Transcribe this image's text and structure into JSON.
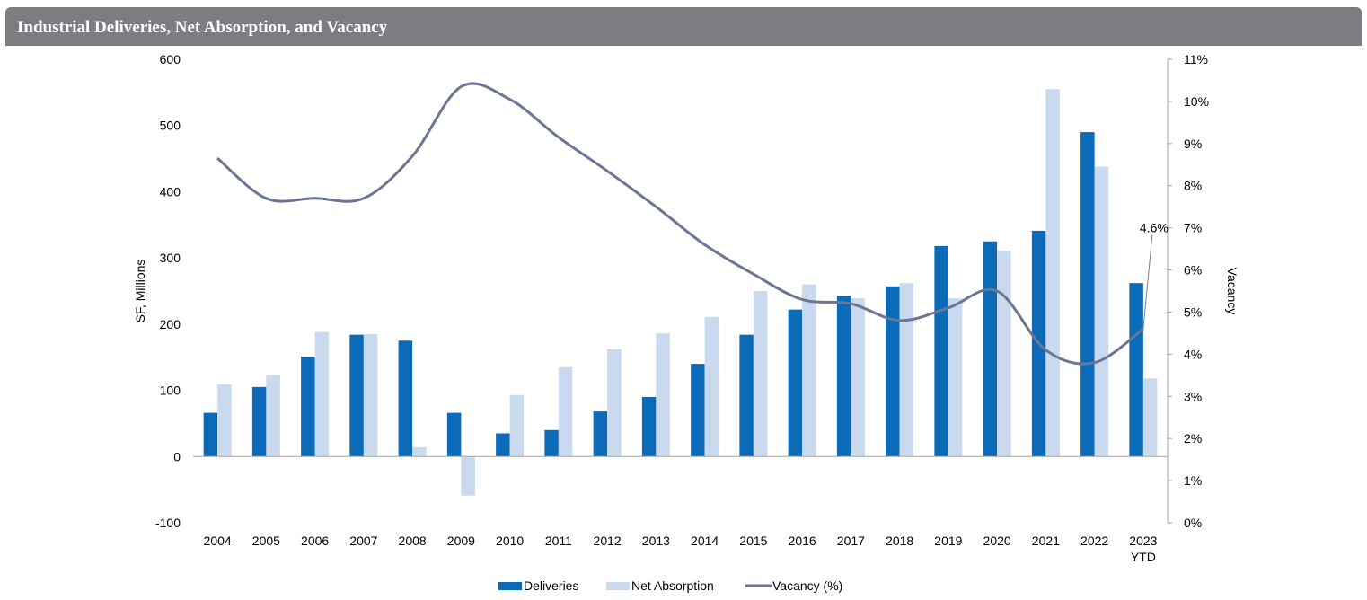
{
  "header": {
    "title": "Industrial Deliveries, Net Absorption, and Vacancy"
  },
  "chart_data": {
    "type": "bar",
    "title": "Industrial Deliveries, Net Absorption, and Vacancy",
    "ylabel": "SF, Millions",
    "y2label": "Vacancy",
    "ylim": [
      -100,
      600
    ],
    "y2lim": [
      0,
      11
    ],
    "yticks": [
      "-100",
      "0",
      "100",
      "200",
      "300",
      "400",
      "500",
      "600"
    ],
    "y2ticks": [
      "0%",
      "1%",
      "2%",
      "3%",
      "4%",
      "5%",
      "6%",
      "7%",
      "8%",
      "9%",
      "10%",
      "11%"
    ],
    "categories": [
      "2004",
      "2005",
      "2006",
      "2007",
      "2008",
      "2009",
      "2010",
      "2011",
      "2012",
      "2013",
      "2014",
      "2015",
      "2016",
      "2017",
      "2018",
      "2019",
      "2020",
      "2021",
      "2022",
      "2023 YTD"
    ],
    "category_lines": [
      [
        "2004"
      ],
      [
        "2005"
      ],
      [
        "2006"
      ],
      [
        "2007"
      ],
      [
        "2008"
      ],
      [
        "2009"
      ],
      [
        "2010"
      ],
      [
        "2011"
      ],
      [
        "2012"
      ],
      [
        "2013"
      ],
      [
        "2014"
      ],
      [
        "2015"
      ],
      [
        "2016"
      ],
      [
        "2017"
      ],
      [
        "2018"
      ],
      [
        "2019"
      ],
      [
        "2020"
      ],
      [
        "2021"
      ],
      [
        "2022"
      ],
      [
        "2023",
        "YTD"
      ]
    ],
    "series": [
      {
        "name": "Deliveries",
        "type": "bar",
        "axis": "left",
        "color": "#0b6bb8",
        "values": [
          66,
          105,
          151,
          184,
          175,
          66,
          35,
          40,
          68,
          90,
          140,
          184,
          222,
          243,
          257,
          318,
          325,
          341,
          490,
          262
        ]
      },
      {
        "name": "Net Absorption",
        "type": "bar",
        "axis": "left",
        "color": "#c9daee",
        "values": [
          109,
          123,
          188,
          185,
          14,
          -59,
          93,
          135,
          162,
          186,
          211,
          250,
          260,
          239,
          262,
          239,
          311,
          555,
          438,
          118
        ]
      },
      {
        "name": "Vacancy (%)",
        "type": "line",
        "axis": "right",
        "color": "#6c7592",
        "values": [
          8.65,
          7.7,
          7.7,
          7.7,
          8.7,
          10.35,
          10.05,
          9.15,
          8.35,
          7.5,
          6.6,
          5.9,
          5.3,
          5.2,
          4.8,
          5.1,
          5.5,
          4.1,
          3.8,
          4.6
        ]
      }
    ],
    "annotations": [
      {
        "text": "4.6%",
        "category": "2023 YTD",
        "series": "Vacancy (%)"
      }
    ],
    "legend": {
      "position": "bottom",
      "items": [
        "Deliveries",
        "Net Absorption",
        "Vacancy (%)"
      ]
    },
    "grid": false
  }
}
